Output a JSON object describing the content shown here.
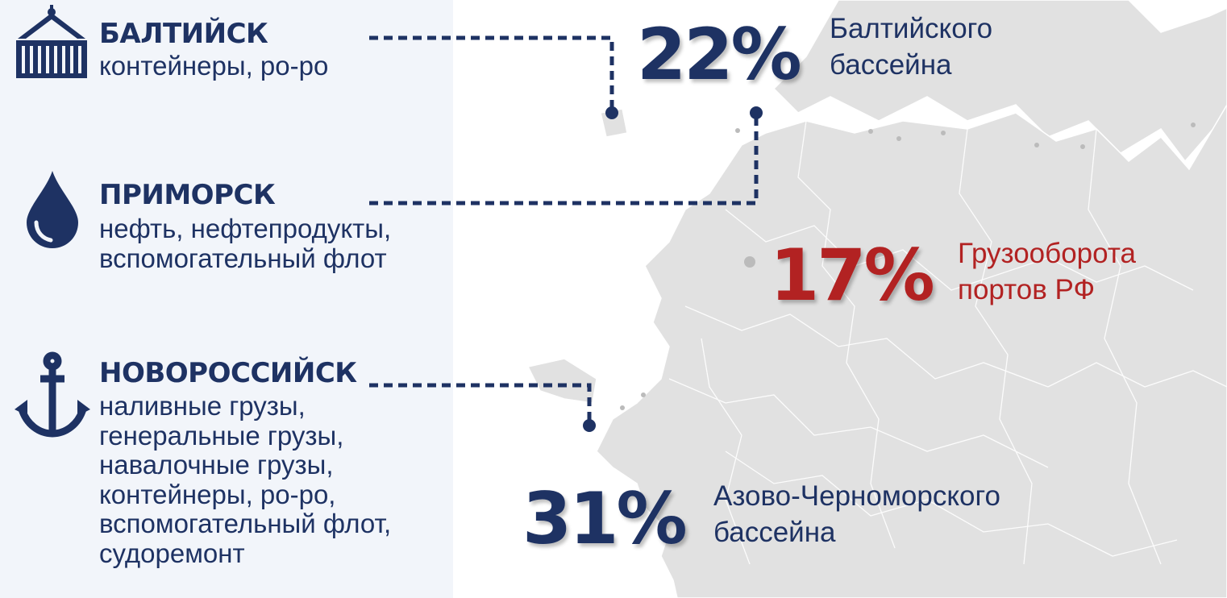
{
  "ports": [
    {
      "name": "БАЛТИЙСК",
      "icon": "shipping-container-icon",
      "desc": [
        "контейнеры, ро-ро"
      ]
    },
    {
      "name": "ПРИМОРСК",
      "icon": "oil-drop-icon",
      "desc": [
        "нефть, нефтепродукты,",
        "вспомогательный флот"
      ]
    },
    {
      "name": "НОВОРОССИЙСК",
      "icon": "anchor-icon",
      "desc": [
        "наливные грузы,",
        "генеральные грузы,",
        "навалочные грузы,",
        "контейнеры, ро-ро,",
        "вспомогательный флот,",
        "судоремонт"
      ]
    }
  ],
  "stats": [
    {
      "value": "22%",
      "label": [
        "Балтийского",
        "бассейна"
      ],
      "color": "#1e3263"
    },
    {
      "value": "17%",
      "label": [
        "Грузооборота",
        "портов РФ"
      ],
      "color": "#b22222"
    },
    {
      "value": "31%",
      "label": [
        "Азово-Черноморского",
        "бассейна"
      ],
      "color": "#1e3263"
    }
  ],
  "colors": {
    "navy": "#1e3263",
    "red": "#b22222",
    "map": "#e1e1e1",
    "panel": "#f2f5fa"
  }
}
